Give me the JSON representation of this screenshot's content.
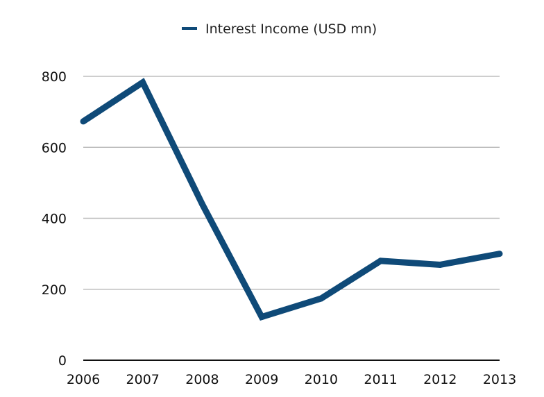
{
  "chart_data": {
    "type": "line",
    "title": "",
    "xlabel": "",
    "ylabel": "",
    "categories": [
      "2006",
      "2007",
      "2008",
      "2009",
      "2010",
      "2011",
      "2012",
      "2013"
    ],
    "series": [
      {
        "name": "Interest Income (USD mn)",
        "values": [
          673,
          783,
          440,
          122,
          174,
          280,
          269,
          300
        ],
        "color": "#0f4a78"
      }
    ],
    "ylim": [
      0,
      800
    ],
    "yticks": [
      "0",
      "200",
      "400",
      "600",
      "800"
    ],
    "grid": true,
    "legend_position": "top-center"
  }
}
